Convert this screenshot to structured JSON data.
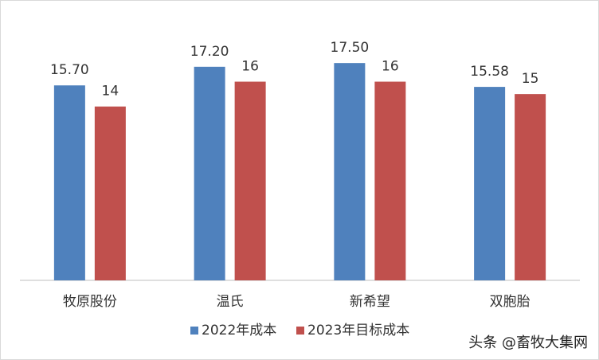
{
  "chart_data": {
    "type": "bar",
    "categories": [
      "牧原股份",
      "温氏",
      "新希望",
      "双胞胎"
    ],
    "series": [
      {
        "name": "2022年成本",
        "values": [
          15.7,
          17.2,
          17.5,
          15.58
        ],
        "labels": [
          "15.70",
          "17.20",
          "17.50",
          "15.58"
        ],
        "color": "#4f81bd"
      },
      {
        "name": "2023年目标成本",
        "values": [
          14,
          16,
          16,
          15
        ],
        "labels": [
          "14",
          "16",
          "16",
          "15"
        ],
        "color": "#c0504d"
      }
    ],
    "ylim": [
      0,
      18.6
    ],
    "grid": false,
    "legend_position": "bottom"
  },
  "watermark": "头条 @畜牧大集网"
}
